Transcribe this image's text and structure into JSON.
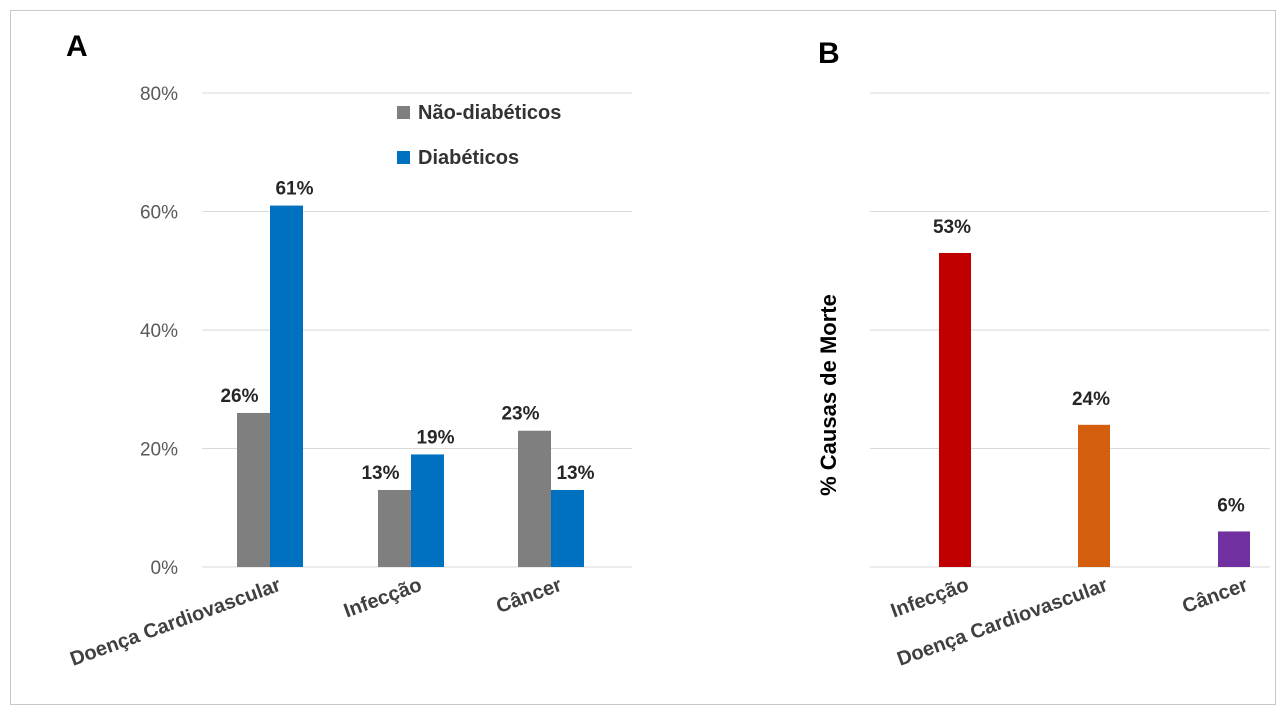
{
  "chart_data": [
    {
      "panel": "A",
      "type": "bar",
      "categories": [
        "Doença Cardiovascular",
        "Infecção",
        "Câncer"
      ],
      "series": [
        {
          "name": "Não-diabéticos",
          "color": "#7f7f7f",
          "values": [
            26,
            13,
            23
          ],
          "labels": [
            "26%",
            "13%",
            "23%"
          ]
        },
        {
          "name": "Diabéticos",
          "color": "#0070c0",
          "values": [
            61,
            19,
            13
          ],
          "labels": [
            "61%",
            "19%",
            "13%"
          ]
        }
      ],
      "ylim": [
        0,
        80
      ],
      "yticks": [
        0,
        20,
        40,
        60,
        80
      ],
      "ytick_labels": [
        "0%",
        "20%",
        "40%",
        "60%",
        "80%"
      ],
      "grid": true,
      "legend": "top-center"
    },
    {
      "panel": "B",
      "type": "bar",
      "ylabel": "% Causas de Morte",
      "categories": [
        "Infecção",
        "Doença Cardiovascular",
        "Câncer"
      ],
      "values": [
        53,
        24,
        6
      ],
      "labels": [
        "53%",
        "24%",
        "6%"
      ],
      "colors": [
        "#c00000",
        "#d35f0e",
        "#7030a0"
      ],
      "ylim": [
        0,
        80
      ],
      "grid": true
    }
  ]
}
